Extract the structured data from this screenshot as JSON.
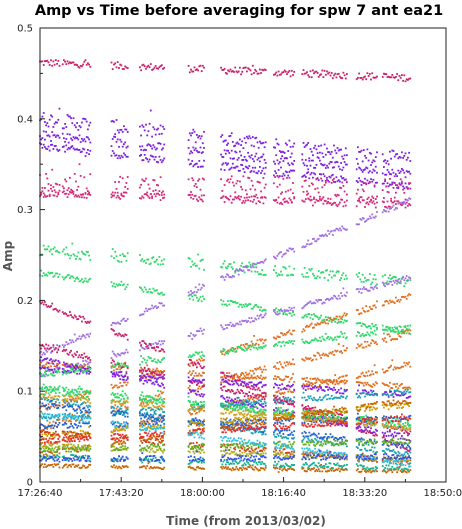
{
  "chart_data": {
    "type": "scatter",
    "title": "Amp vs Time before averaging for spw 7 ant ea21",
    "xlabel": "Time (from 2013/03/02)",
    "ylabel": "Amp",
    "x_tick_labels": [
      "17:26:40",
      "17:43:20",
      "18:00:00",
      "18:16:40",
      "18:33:20",
      "18:50:00"
    ],
    "x_tick_seconds": [
      0,
      1000,
      2000,
      3000,
      4000,
      5000
    ],
    "xlim": [
      0,
      5000
    ],
    "y_tick_labels": [
      "0",
      "0.1",
      "0.2",
      "0.3",
      "0.4",
      "0.5"
    ],
    "ylim": [
      0,
      0.5
    ],
    "grid": false,
    "scan_starts": [
      0,
      280,
      880,
      1230,
      1830,
      2230,
      2880,
      3230,
      3900,
      4220
    ],
    "scan_ends": [
      240,
      620,
      1080,
      1530,
      2020,
      2780,
      3130,
      3780,
      4150,
      4560
    ],
    "series": [
      {
        "color": "#c8206a",
        "x": [
          0,
          4560
        ],
        "y": [
          0.462,
          0.445
        ],
        "spread": 0.004
      },
      {
        "color": "#7d20e0",
        "x": [
          0,
          4560
        ],
        "y": [
          0.4,
          0.355
        ],
        "spread": 0.008
      },
      {
        "color": "#7d20e0",
        "x": [
          0,
          4560
        ],
        "y": [
          0.382,
          0.34
        ],
        "spread": 0.005
      },
      {
        "color": "#7d20e0",
        "x": [
          0,
          4560
        ],
        "y": [
          0.37,
          0.325
        ],
        "spread": 0.004
      },
      {
        "color": "#d42a7a",
        "x": [
          0,
          4560
        ],
        "y": [
          0.328,
          0.322
        ],
        "spread": 0.012
      },
      {
        "color": "#d42a7a",
        "x": [
          0,
          4560
        ],
        "y": [
          0.318,
          0.305
        ],
        "spread": 0.004
      },
      {
        "color": "#2ed86a",
        "x": [
          0,
          4560
        ],
        "y": [
          0.255,
          0.22
        ],
        "spread": 0.006
      },
      {
        "color": "#2ed86a",
        "x": [
          0,
          4560
        ],
        "y": [
          0.23,
          0.165
        ],
        "spread": 0.003
      },
      {
        "color": "#a070e0",
        "x": [
          0,
          4560
        ],
        "y": [
          0.14,
          0.31
        ],
        "spread": 0.003
      },
      {
        "color": "#a070e0",
        "x": [
          0,
          4560
        ],
        "y": [
          0.118,
          0.225
        ],
        "spread": 0.003
      },
      {
        "color": "#e07020",
        "x": [
          0,
          4560
        ],
        "y": [
          0.08,
          0.205
        ],
        "spread": 0.003
      },
      {
        "color": "#e07020",
        "x": [
          0,
          4560
        ],
        "y": [
          0.06,
          0.165
        ],
        "spread": 0.004
      },
      {
        "color": "#e07020",
        "x": [
          0,
          4560
        ],
        "y": [
          0.04,
          0.13
        ],
        "spread": 0.003
      },
      {
        "color": "#e07020",
        "x": [
          0,
          4560
        ],
        "y": [
          0.13,
          0.105
        ],
        "spread": 0.003
      },
      {
        "color": "#c8206a",
        "x": [
          0,
          4560
        ],
        "y": [
          0.198,
          0.035
        ],
        "spread": 0.003
      },
      {
        "color": "#c8206a",
        "x": [
          0,
          4560
        ],
        "y": [
          0.15,
          0.055
        ],
        "spread": 0.003
      },
      {
        "color": "#7d20e0",
        "x": [
          0,
          4560
        ],
        "y": [
          0.135,
          0.048
        ],
        "spread": 0.003
      },
      {
        "color": "#7d20e0",
        "x": [
          0,
          4560
        ],
        "y": [
          0.125,
          0.095
        ],
        "spread": 0.003
      },
      {
        "color": "#2ed86a",
        "x": [
          0,
          4560
        ],
        "y": [
          0.118,
          0.17
        ],
        "spread": 0.003
      },
      {
        "color": "#2ed86a",
        "x": [
          0,
          4560
        ],
        "y": [
          0.105,
          0.06
        ],
        "spread": 0.003
      },
      {
        "color": "#2ed86a",
        "x": [
          0,
          4560
        ],
        "y": [
          0.1,
          0.065
        ],
        "spread": 0.004
      },
      {
        "color": "#1aa0b0",
        "x": [
          0,
          4560
        ],
        "y": [
          0.092,
          0.03
        ],
        "spread": 0.003
      },
      {
        "color": "#1aa0b0",
        "x": [
          0,
          4560
        ],
        "y": [
          0.07,
          0.1
        ],
        "spread": 0.003
      },
      {
        "color": "#2060d0",
        "x": [
          0,
          4560
        ],
        "y": [
          0.085,
          0.04
        ],
        "spread": 0.003
      },
      {
        "color": "#2060d0",
        "x": [
          0,
          4560
        ],
        "y": [
          0.062,
          0.07
        ],
        "spread": 0.003
      },
      {
        "color": "#d4a020",
        "x": [
          0,
          4560
        ],
        "y": [
          0.095,
          0.06
        ],
        "spread": 0.003
      },
      {
        "color": "#c8a000",
        "x": [
          0,
          4560
        ],
        "y": [
          0.05,
          0.085
        ],
        "spread": 0.003
      },
      {
        "color": "#c86400",
        "x": [
          0,
          4560
        ],
        "y": [
          0.03,
          0.09
        ],
        "spread": 0.003
      },
      {
        "color": "#c86400",
        "x": [
          0,
          4560
        ],
        "y": [
          0.018,
          0.012
        ],
        "spread": 0.002
      },
      {
        "color": "#d04010",
        "x": [
          0,
          4560
        ],
        "y": [
          0.055,
          0.022
        ],
        "spread": 0.003
      },
      {
        "color": "#e03030",
        "x": [
          0,
          4560
        ],
        "y": [
          0.045,
          0.07
        ],
        "spread": 0.003
      },
      {
        "color": "#b0b020",
        "x": [
          0,
          4560
        ],
        "y": [
          0.04,
          0.025
        ],
        "spread": 0.003
      },
      {
        "color": "#60b020",
        "x": [
          0,
          4560
        ],
        "y": [
          0.035,
          0.045
        ],
        "spread": 0.003
      },
      {
        "color": "#10b090",
        "x": [
          0,
          4560
        ],
        "y": [
          0.028,
          0.015
        ],
        "spread": 0.003
      },
      {
        "color": "#30c0e0",
        "x": [
          0,
          4560
        ],
        "y": [
          0.075,
          0.02
        ],
        "spread": 0.003
      },
      {
        "color": "#3050e0",
        "x": [
          0,
          4560
        ],
        "y": [
          0.025,
          0.028
        ],
        "spread": 0.003
      }
    ]
  }
}
